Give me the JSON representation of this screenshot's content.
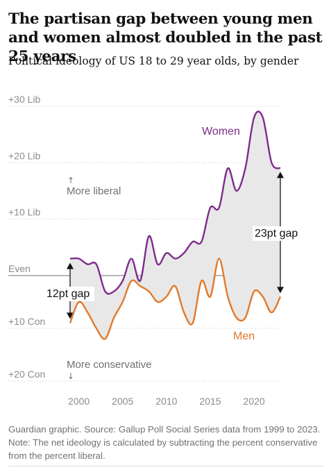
{
  "headline": "The partisan gap between young men and women almost doubled in the past 25 years",
  "subtitle": "Political ideology of US 18 to 29 year olds, by gender",
  "footnote": "Guardian graphic. Source: Gallup Poll Social Series data from 1999 to 2023. Note: The net ideology is calculated by subtracting the percent conservative from the percent liberal.",
  "colors": {
    "women": "#7d2b8b",
    "men": "#e0792a",
    "gap_fill": "#e8e8e8",
    "gridline": "#cfcfcf",
    "even_line": "#8c8c8c",
    "arrow": "#121212"
  },
  "annotations": {
    "more_liberal": "More liberal",
    "more_liberal_arrow": "↑",
    "more_conservative": "More conservative",
    "more_conservative_arrow": "↓",
    "gap_1999": "12pt gap",
    "gap_2023": "23pt gap"
  },
  "chart_data": {
    "type": "line",
    "title": "The partisan gap between young men and women almost doubled in the past 25 years",
    "subtitle": "Political ideology of US 18 to 29 year olds, by gender",
    "xlabel": "",
    "ylabel": "",
    "xlim": [
      1997.5,
      2024.5
    ],
    "ylim": [
      -20,
      30
    ],
    "x_ticks": [
      2000,
      2005,
      2010,
      2015,
      2020
    ],
    "x_tick_labels": [
      "2000",
      "2005",
      "2010",
      "2015",
      "2020"
    ],
    "y_ticks": [
      30,
      20,
      10,
      0,
      -10,
      -20
    ],
    "y_tick_labels": [
      "+30 Lib",
      "+20 Lib",
      "+10 Lib",
      "Even",
      "+10 Con",
      "+20 Con"
    ],
    "grid": true,
    "legend": "direct labels",
    "x": [
      1999,
      2000,
      2001,
      2002,
      2003,
      2004,
      2005,
      2006,
      2007,
      2008,
      2009,
      2010,
      2011,
      2012,
      2013,
      2014,
      2015,
      2016,
      2017,
      2018,
      2019,
      2020,
      2021,
      2022,
      2023
    ],
    "series": [
      {
        "name": "Women",
        "values": [
          3,
          3,
          2,
          2,
          -3,
          -3,
          -1,
          3,
          -1,
          7,
          2,
          4,
          3,
          4,
          6,
          6,
          12,
          12,
          19,
          15,
          19,
          28,
          28,
          20,
          19
        ]
      },
      {
        "name": "Men",
        "values": [
          -9,
          -5,
          -7,
          -10,
          -12,
          -8,
          -5,
          -1,
          -2,
          -3,
          -5,
          -4,
          -2,
          -7,
          -9,
          -1,
          -4,
          3,
          -4,
          -8,
          -8,
          -3,
          -4,
          -7,
          -4
        ]
      }
    ],
    "gap_annotations": [
      {
        "year": 1999,
        "label": "12pt gap"
      },
      {
        "year": 2023,
        "label": "23pt gap"
      }
    ]
  }
}
